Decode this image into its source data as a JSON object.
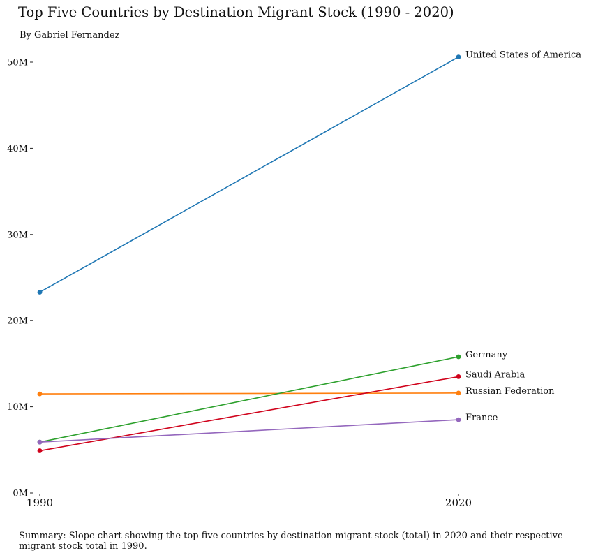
{
  "header": {
    "title": "Top Five Countries by Destination Migrant Stock (1990 - 2020)",
    "subtitle": "By Gabriel Fernandez"
  },
  "footer": {
    "summary": "Summary: Slope chart showing the top five countries by destination migrant stock (total) in 2020 and their respective migrant stock total in 1990."
  },
  "chart_data": {
    "type": "line",
    "title": "Top Five Countries by Destination Migrant Stock (1990 - 2020)",
    "xlabel": "",
    "ylabel": "",
    "categories": [
      "1990",
      "2020"
    ],
    "ylim": [
      0,
      50
    ],
    "yticks": [
      0,
      10,
      20,
      30,
      40,
      50
    ],
    "ytick_labels": [
      "0M",
      "10M",
      "20M",
      "30M",
      "40M",
      "50M"
    ],
    "grid": false,
    "series": [
      {
        "name": "United States of America",
        "color": "#1f77b4",
        "values": [
          23.3,
          50.6
        ]
      },
      {
        "name": "Russian Federation",
        "color": "#ff7f0e",
        "values": [
          11.5,
          11.6
        ]
      },
      {
        "name": "Germany",
        "color": "#2ca02c",
        "values": [
          5.9,
          15.8
        ]
      },
      {
        "name": "Saudi Arabia",
        "color": "#d0021b",
        "values": [
          4.9,
          13.5
        ]
      },
      {
        "name": "France",
        "color": "#9467bd",
        "values": [
          5.9,
          8.5
        ]
      }
    ]
  }
}
